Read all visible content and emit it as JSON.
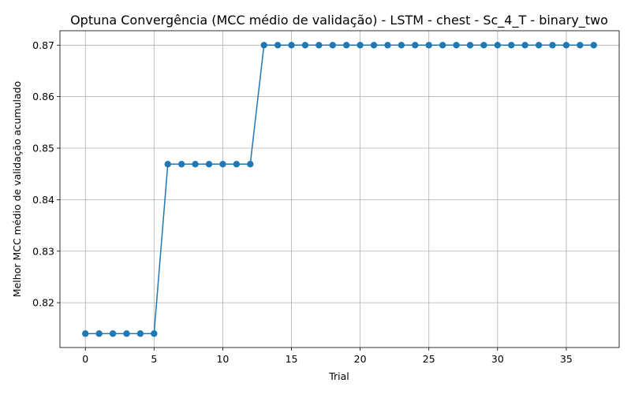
{
  "chart_data": {
    "type": "line",
    "title": "Optuna Convergência (MCC médio de validação) - LSTM - chest - Sc_4_T - binary_two",
    "xlabel": "Trial",
    "ylabel": "Melhor MCC médio de validação acumulado",
    "xlim": [
      -1.85,
      38.85
    ],
    "ylim": [
      0.8113,
      0.8728
    ],
    "x_ticks": [
      0,
      5,
      10,
      15,
      20,
      25,
      30,
      35
    ],
    "y_ticks": [
      0.82,
      0.83,
      0.84,
      0.85,
      0.86,
      0.87
    ],
    "x_tick_labels": [
      "0",
      "5",
      "10",
      "15",
      "20",
      "25",
      "30",
      "35"
    ],
    "y_tick_labels": [
      "0.82",
      "0.83",
      "0.84",
      "0.85",
      "0.86",
      "0.87"
    ],
    "grid": true,
    "marker": "circle",
    "color": "#1f77b4",
    "series": [
      {
        "x": [
          0,
          1,
          2,
          3,
          4,
          5,
          6,
          7,
          8,
          9,
          10,
          11,
          12,
          13,
          14,
          15,
          16,
          17,
          18,
          19,
          20,
          21,
          22,
          23,
          24,
          25,
          26,
          27,
          28,
          29,
          30,
          31,
          32,
          33,
          34,
          35,
          36,
          37
        ],
        "values": [
          0.814,
          0.814,
          0.814,
          0.814,
          0.814,
          0.814,
          0.8469,
          0.8469,
          0.8469,
          0.8469,
          0.8469,
          0.8469,
          0.8469,
          0.87,
          0.87,
          0.87,
          0.87,
          0.87,
          0.87,
          0.87,
          0.87,
          0.87,
          0.87,
          0.87,
          0.87,
          0.87,
          0.87,
          0.87,
          0.87,
          0.87,
          0.87,
          0.87,
          0.87,
          0.87,
          0.87,
          0.87,
          0.87,
          0.87
        ]
      }
    ]
  }
}
